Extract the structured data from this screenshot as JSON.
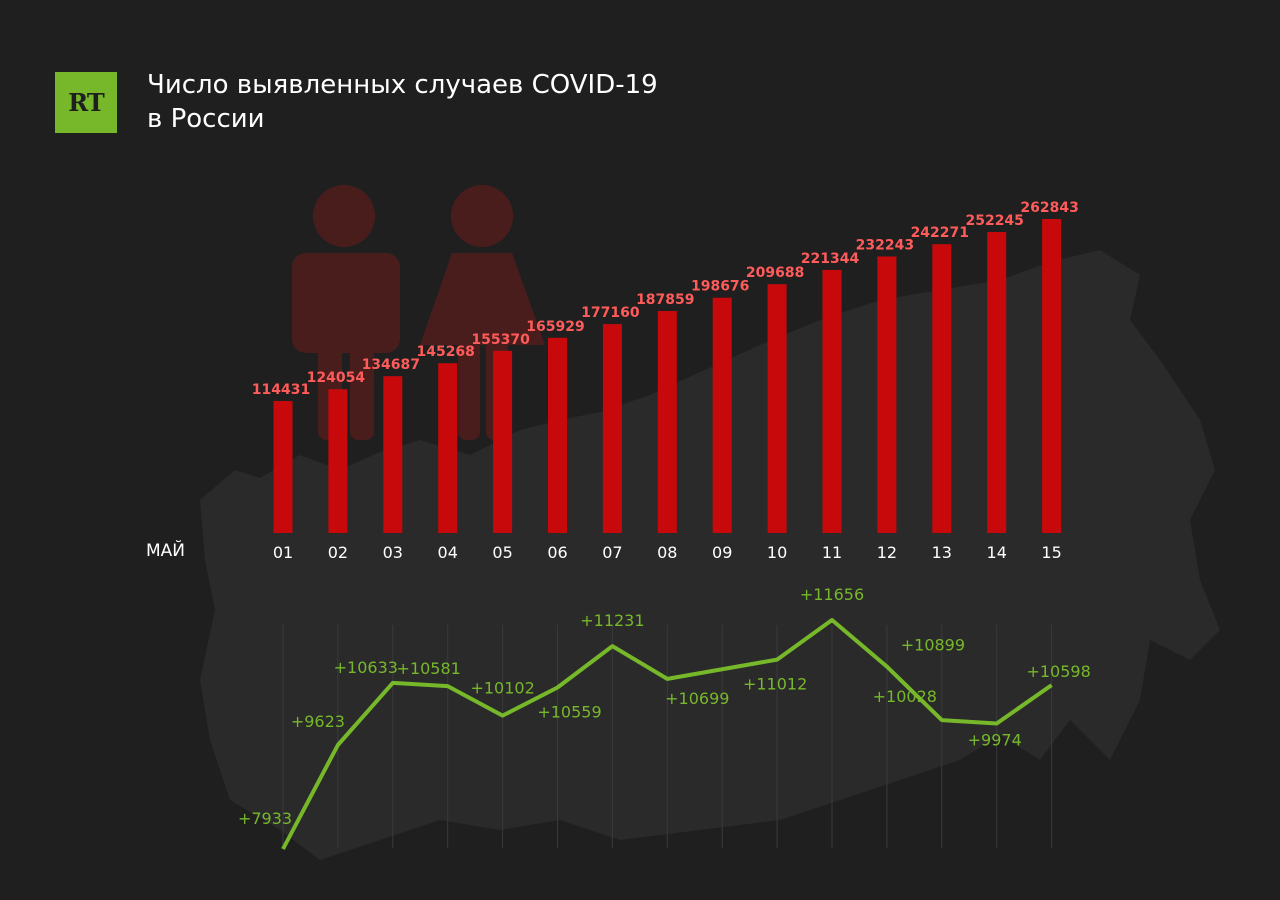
{
  "header": {
    "logo_text": "RT",
    "title_line1": "Число выявленных случаев COVID-19",
    "title_line2": "в России"
  },
  "colors": {
    "background": "#1f1f1f",
    "map": "#2a2a2a",
    "bar": "#c8090b",
    "bar_label": "#ff5b5b",
    "line": "#77b82a",
    "silhouette": "#4a1d1d",
    "logo": "#77b82a"
  },
  "chart_data": [
    {
      "type": "bar",
      "x_unit_label": "МАЙ",
      "categories": [
        "01",
        "02",
        "03",
        "04",
        "05",
        "06",
        "07",
        "08",
        "09",
        "10",
        "11",
        "12",
        "13",
        "14",
        "15"
      ],
      "values": [
        114431,
        124054,
        134687,
        145268,
        155370,
        165929,
        177160,
        187859,
        198676,
        209688,
        221344,
        232243,
        242271,
        252245,
        262843
      ],
      "labels": [
        "114431",
        "124054",
        "134687",
        "145268",
        "155370",
        "165929",
        "177160",
        "187859",
        "198676",
        "209688",
        "221344",
        "232243",
        "242271",
        "252245",
        "262843"
      ],
      "grid": false
    },
    {
      "type": "line",
      "categories": [
        "01",
        "02",
        "03",
        "04",
        "05",
        "06",
        "07",
        "08",
        "09",
        "10",
        "11",
        "12",
        "13",
        "14",
        "15"
      ],
      "values": [
        7933,
        9623,
        10633,
        10581,
        10102,
        10559,
        11231,
        10699,
        null,
        11012,
        11656,
        10899,
        10028,
        9974,
        10598
      ],
      "labels": [
        "+7933",
        "+9623",
        "+10633",
        "+10581",
        "+10102",
        "+10559",
        "+11231",
        "+10699",
        "",
        "+11012",
        "+11656",
        "+10899",
        "+10028",
        "+9974",
        "+10598"
      ],
      "grid": false
    }
  ]
}
